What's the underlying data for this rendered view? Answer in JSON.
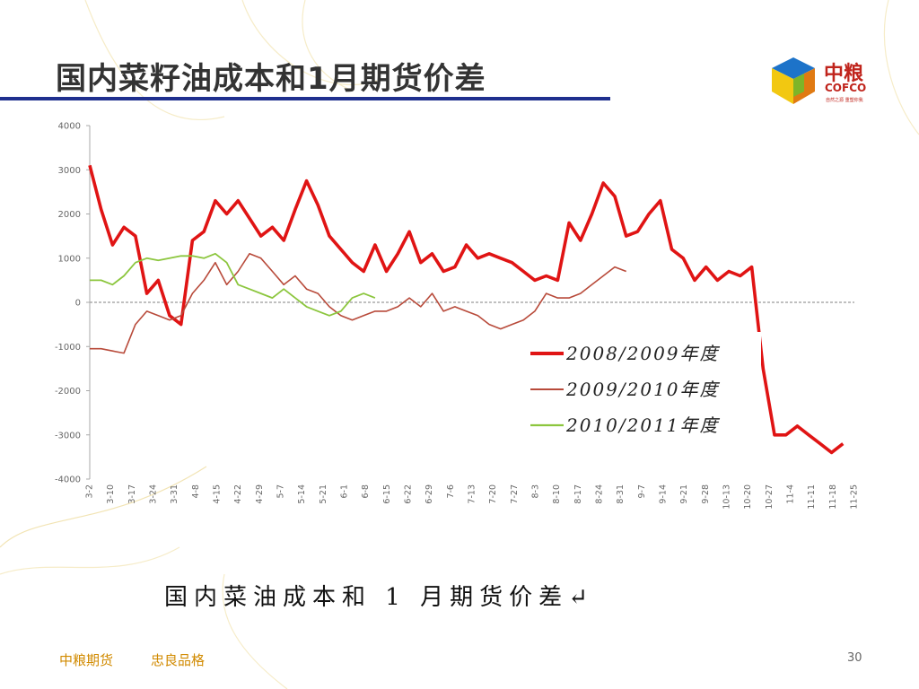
{
  "slide": {
    "title": "国内菜籽油成本和1月期货价差",
    "caption": "国内菜油成本和 1 月期货价差↵",
    "page_number": "30"
  },
  "logo": {
    "name_cn": "中粮",
    "name_en": "COFCO",
    "tagline": "自然之源 重塑你我"
  },
  "footer": {
    "brand": "中粮期货",
    "motto": "忠良品格"
  },
  "colors": {
    "title_rule": "#1f2f8e",
    "series_2008": "#e01414",
    "series_2009": "#b84a3a",
    "series_2010": "#8cc63e",
    "footer_text": "#d18a00",
    "logo_red": "#c0241c"
  },
  "chart_data": {
    "type": "line",
    "ylim": [
      -4000,
      4000
    ],
    "yticks": [
      "4000",
      "3000",
      "2000",
      "1000",
      "0",
      "-1000",
      "-2000",
      "-3000",
      "-4000"
    ],
    "xtick_labels": [
      "3-2",
      "3-10",
      "3-17",
      "3-24",
      "3-31",
      "4-8",
      "4-15",
      "4-22",
      "4-29",
      "5-7",
      "5-14",
      "5-21",
      "6-1",
      "6-8",
      "6-15",
      "6-22",
      "6-29",
      "7-6",
      "7-13",
      "7-20",
      "7-27",
      "8-3",
      "8-10",
      "8-17",
      "8-24",
      "8-31",
      "9-7",
      "9-14",
      "9-21",
      "9-28",
      "10-13",
      "10-20",
      "10-27",
      "11-4",
      "11-11",
      "11-18",
      "11-25"
    ],
    "legend_position": "right-middle",
    "series": [
      {
        "name": "2008/2009年度",
        "values": [
          3100,
          2100,
          1300,
          1700,
          1500,
          200,
          500,
          -300,
          -500,
          1400,
          1600,
          2300,
          2000,
          2300,
          1900,
          1500,
          1700,
          1400,
          2100,
          2750,
          2200,
          1500,
          1200,
          900,
          700,
          1300,
          700,
          1100,
          1600,
          900,
          1100,
          700,
          800,
          1300,
          1000,
          1100,
          1000,
          900,
          700,
          500,
          600,
          500,
          1800,
          1400,
          2000,
          2700,
          2400,
          1500,
          1600,
          2000,
          2300,
          1200,
          1000,
          500,
          800,
          500,
          700,
          600,
          800,
          -1500,
          -3000,
          -3000,
          -2800,
          -3000,
          -3200,
          -3400,
          -3200
        ]
      },
      {
        "name": "2009/2010年度",
        "values": [
          -1050,
          -1050,
          -1100,
          -1150,
          -500,
          -200,
          -300,
          -400,
          -300,
          200,
          500,
          900,
          400,
          700,
          1100,
          1000,
          700,
          400,
          600,
          300,
          200,
          -100,
          -300,
          -400,
          -300,
          -200,
          -200,
          -100,
          100,
          -100,
          200,
          -200,
          -100,
          -200,
          -300,
          -500,
          -600,
          -500,
          -400,
          -200,
          200,
          100,
          100,
          200,
          400,
          600,
          800,
          700
        ]
      },
      {
        "name": "2010/2011年度",
        "values": [
          500,
          500,
          400,
          600,
          900,
          1000,
          950,
          1000,
          1050,
          1050,
          1000,
          1100,
          900,
          400,
          300,
          200,
          100,
          300,
          100,
          -100,
          -200,
          -300,
          -200,
          100,
          200,
          100
        ]
      }
    ]
  }
}
